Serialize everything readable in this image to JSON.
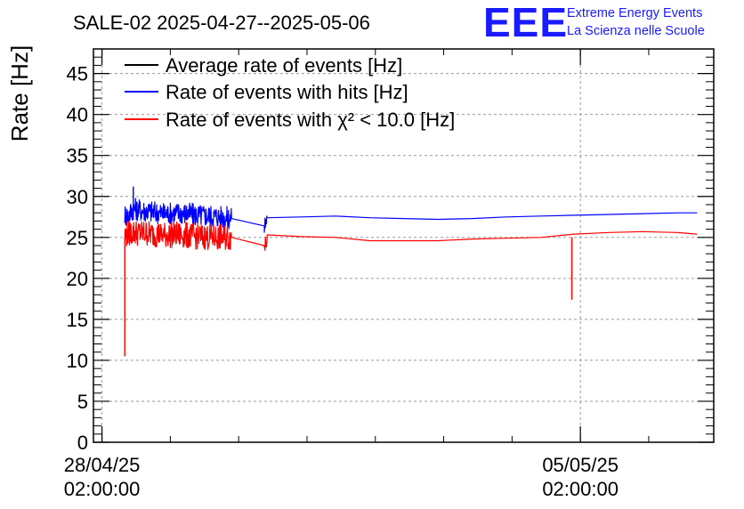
{
  "chart_data": {
    "type": "line",
    "title": "SALE-02 2025-04-27--2025-05-06",
    "ylabel": "Rate [Hz]",
    "xlabel": "",
    "ylim": [
      0,
      48
    ],
    "yticks": [
      0,
      5,
      10,
      15,
      20,
      25,
      30,
      35,
      40,
      45
    ],
    "xlim": [
      "2025-04-27T23:00:00",
      "2025-05-07T00:50:00"
    ],
    "xticks": [
      {
        "value": "2025-04-28T02:00:00",
        "date": "28/04/25",
        "time": "02:00:00"
      },
      {
        "value": "2025-05-05T02:00:00",
        "date": "05/05/25",
        "time": "02:00:00"
      }
    ],
    "grid": true,
    "legend_position": "top-left",
    "series": [
      {
        "name": "Average rate of events [Hz]",
        "color": "#000000",
        "x": [],
        "y": []
      },
      {
        "name": "Rate of events with hits [Hz]",
        "color": "#0000ff",
        "x": [
          "2025-04-28T10:00:00",
          "2025-04-28T11:00:00",
          "2025-04-28T13:00:00",
          "2025-04-28T18:00:00",
          "2025-04-29T00:00:00",
          "2025-04-29T06:00:00",
          "2025-04-29T12:00:00",
          "2025-04-29T18:00:00",
          "2025-04-29T23:30:00",
          "2025-04-30T11:00:00",
          "2025-04-30T12:00:00",
          "2025-05-01T00:00:00",
          "2025-05-01T12:00:00",
          "2025-05-02T00:00:00",
          "2025-05-02T12:00:00",
          "2025-05-03T00:00:00",
          "2025-05-03T12:00:00",
          "2025-05-04T00:00:00",
          "2025-05-04T12:00:00",
          "2025-05-05T00:00:00",
          "2025-05-05T12:00:00",
          "2025-05-06T00:00:00",
          "2025-05-06T12:00:00",
          "2025-05-06T19:00:00"
        ],
        "y": [
          27.8,
          27.6,
          28.5,
          28.2,
          27.9,
          28.0,
          27.7,
          27.6,
          27.3,
          26.4,
          27.4,
          27.5,
          27.6,
          27.4,
          27.3,
          27.2,
          27.3,
          27.5,
          27.6,
          27.7,
          27.8,
          27.9,
          28.0,
          28.0
        ]
      },
      {
        "name": "Rate of events with χ² < 10.0 [Hz]",
        "color": "#ff0000",
        "x": [
          "2025-04-28T10:00:00",
          "2025-04-28T11:00:00",
          "2025-04-28T13:00:00",
          "2025-04-28T18:00:00",
          "2025-04-29T00:00:00",
          "2025-04-29T06:00:00",
          "2025-04-29T12:00:00",
          "2025-04-29T18:00:00",
          "2025-04-29T23:30:00",
          "2025-04-30T11:00:00",
          "2025-04-30T12:00:00",
          "2025-05-01T00:00:00",
          "2025-05-01T12:00:00",
          "2025-05-02T00:00:00",
          "2025-05-02T12:00:00",
          "2025-05-03T00:00:00",
          "2025-05-03T12:00:00",
          "2025-05-04T00:00:00",
          "2025-05-04T12:00:00",
          "2025-05-05T00:00:00",
          "2025-05-05T12:00:00",
          "2025-05-06T00:00:00",
          "2025-05-06T12:00:00",
          "2025-05-06T19:00:00"
        ],
        "y": [
          25.2,
          25.5,
          25.6,
          25.5,
          25.3,
          25.3,
          25.1,
          25.0,
          25.0,
          24.0,
          25.3,
          25.1,
          25.0,
          24.6,
          24.6,
          24.6,
          24.8,
          24.9,
          25.0,
          25.4,
          25.6,
          25.7,
          25.6,
          25.4
        ]
      }
    ],
    "spikes": [
      {
        "series": 2,
        "x": "2025-04-28T10:00:00",
        "y": 10.5
      },
      {
        "series": 2,
        "x": "2025-05-04T23:00:00",
        "y": 17.4
      },
      {
        "series": 1,
        "x": "2025-04-28T13:00:00",
        "y": 31.2
      }
    ]
  },
  "logo": {
    "mark": "EEE",
    "line1": "Extreme Energy Events",
    "line2": "La Scienza nelle Scuole"
  }
}
